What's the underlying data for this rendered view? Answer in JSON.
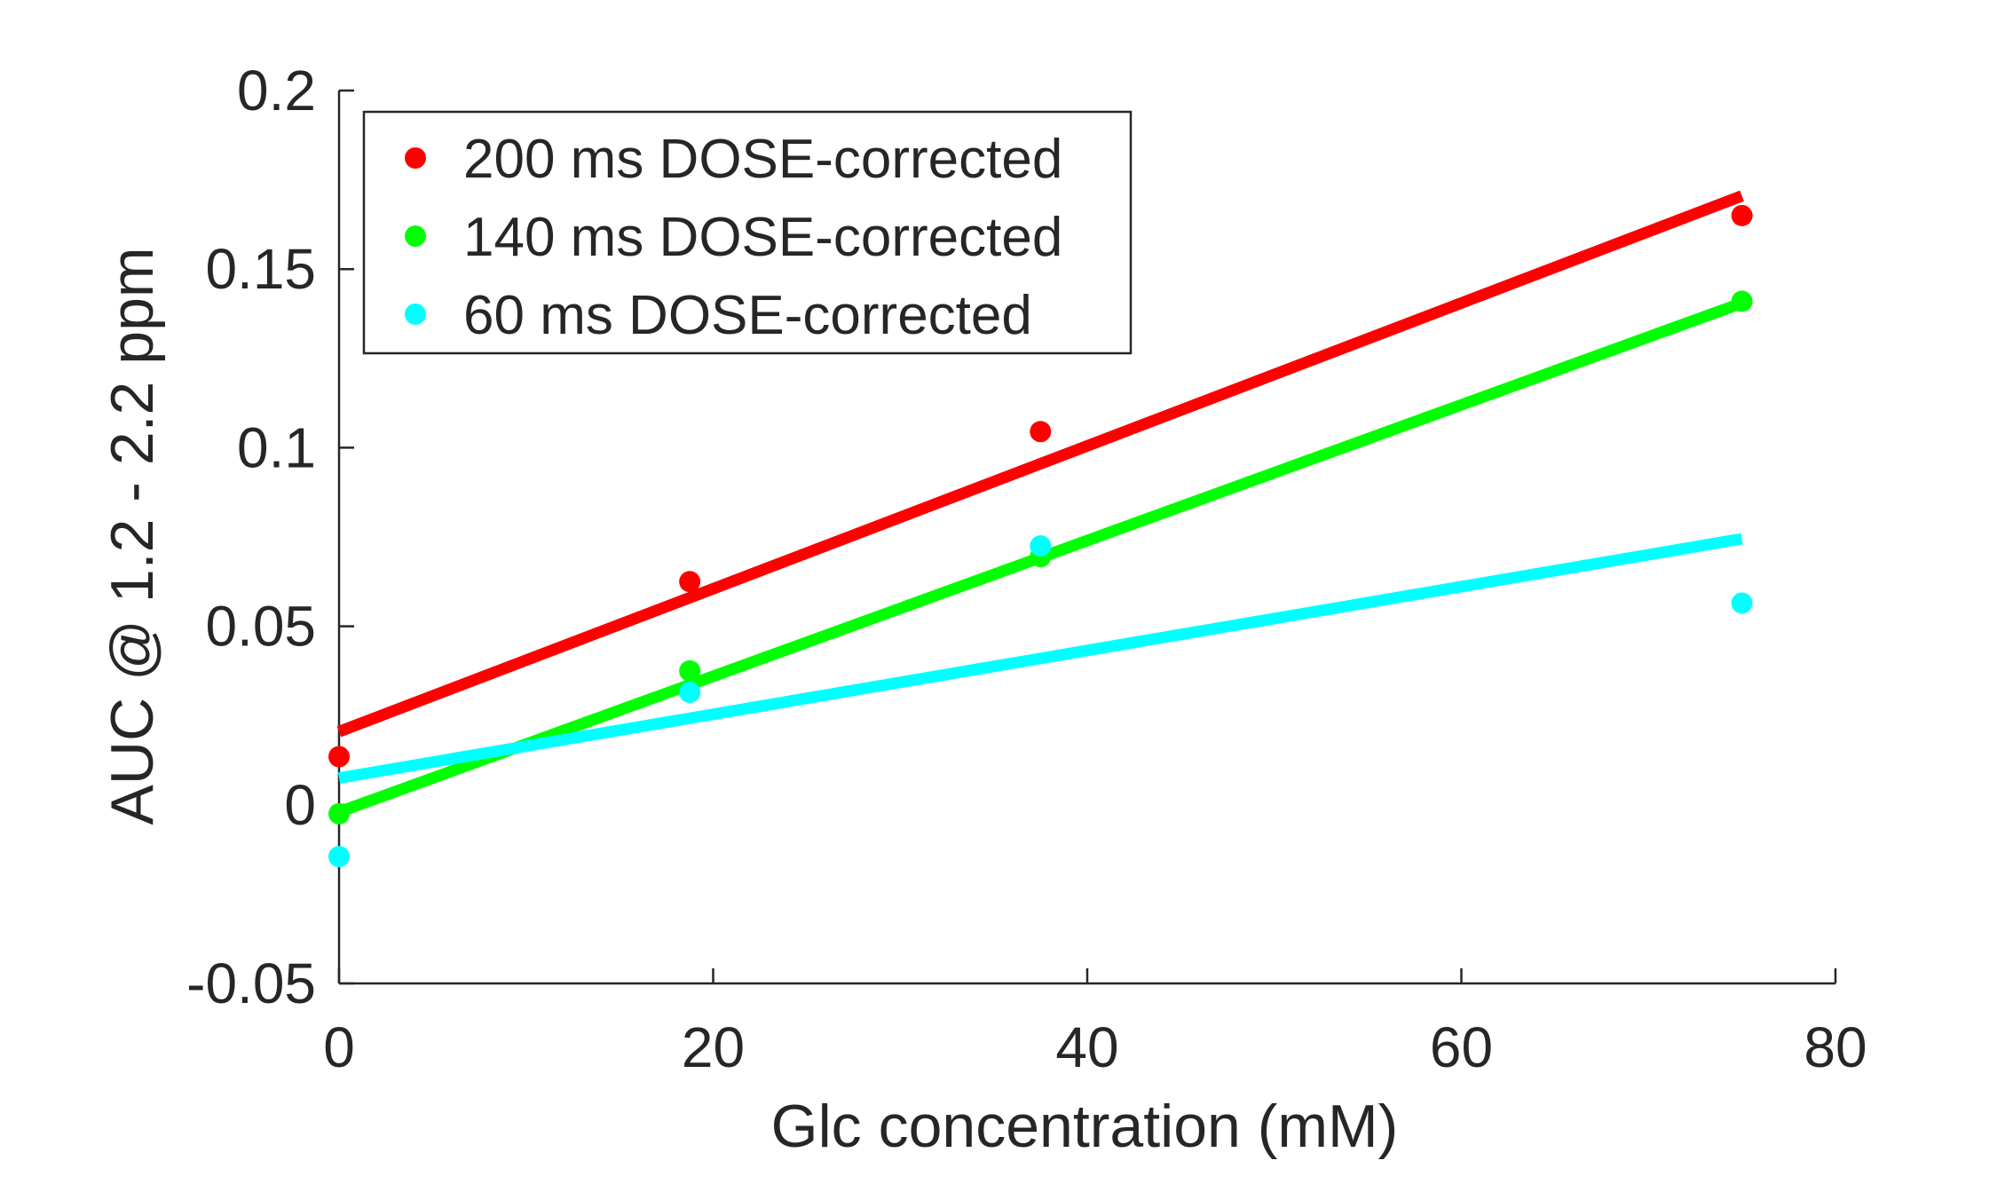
{
  "chart_data": {
    "type": "scatter",
    "title": "",
    "xlabel": "Glc concentration (mM)",
    "ylabel": "AUC @ 1.2 - 2.2 ppm",
    "xlim": [
      0,
      80
    ],
    "ylim": [
      -0.05,
      0.2
    ],
    "xticks": [
      0,
      20,
      40,
      60,
      80
    ],
    "xtick_labels": [
      "0",
      "20",
      "40",
      "60",
      "80"
    ],
    "yticks": [
      -0.05,
      0,
      0.05,
      0.1,
      0.15,
      0.2
    ],
    "ytick_labels": [
      "-0.05",
      "0",
      "0.05",
      "0.1",
      "0.15",
      "0.2"
    ],
    "grid": false,
    "legend_position": "top-left",
    "series": [
      {
        "name": "200 ms DOSE-corrected",
        "color": "#ff0000",
        "x": [
          0,
          18.75,
          37.5,
          75
        ],
        "y": [
          0.0135,
          0.0625,
          0.1045,
          0.165
        ],
        "fit": {
          "x": [
            0,
            75
          ],
          "y": [
            0.0205,
            0.1705
          ]
        }
      },
      {
        "name": "140 ms DOSE-corrected",
        "color": "#00ff00",
        "x": [
          0,
          18.75,
          37.5,
          75
        ],
        "y": [
          -0.0025,
          0.0375,
          0.0695,
          0.141
        ],
        "fit": {
          "x": [
            0,
            75
          ],
          "y": [
            -0.002,
            0.1405
          ]
        }
      },
      {
        "name": "60 ms DOSE-corrected",
        "color": "#00ffff",
        "x": [
          0,
          18.75,
          37.5,
          75
        ],
        "y": [
          -0.0145,
          0.0315,
          0.0725,
          0.0565
        ],
        "fit": {
          "x": [
            0,
            75
          ],
          "y": [
            0.0075,
            0.0745
          ]
        }
      }
    ]
  }
}
